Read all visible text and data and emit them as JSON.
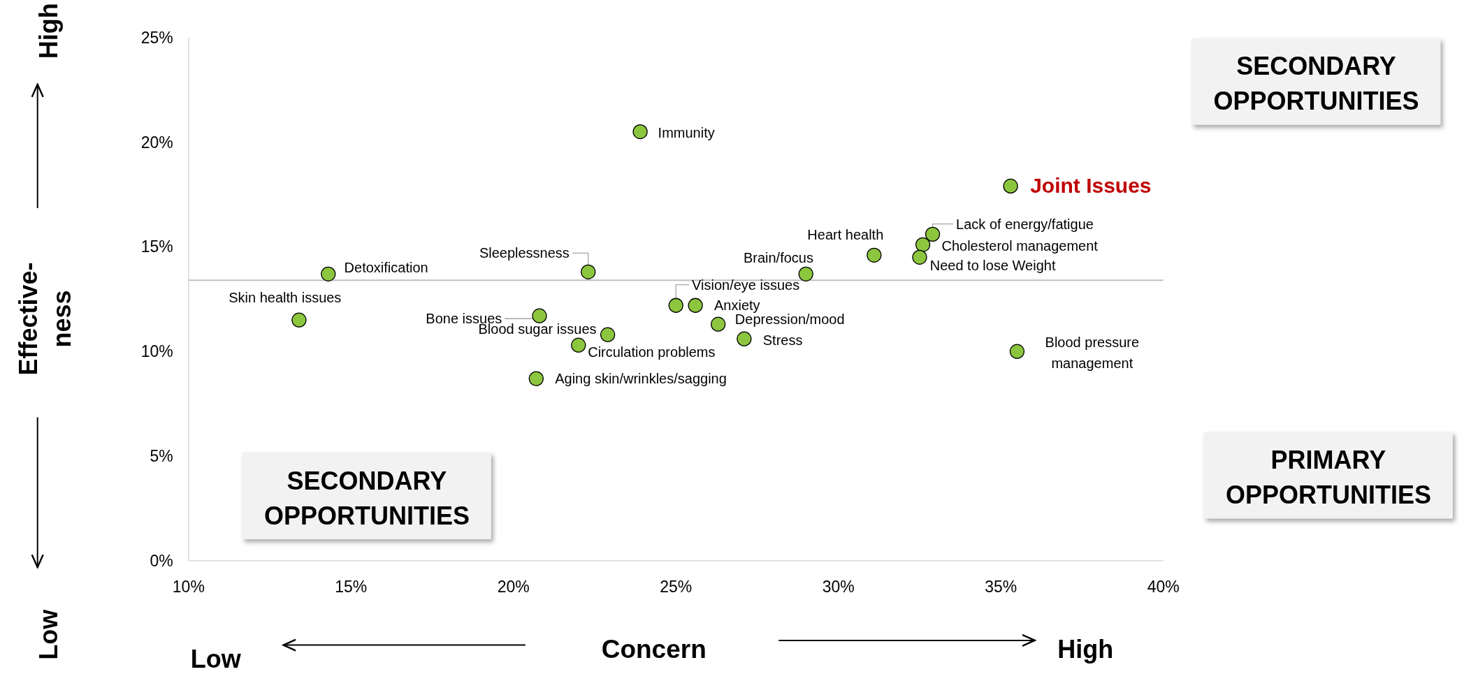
{
  "chart_data": {
    "type": "scatter",
    "xlabel": "Concern",
    "ylabel": "Effective-ness",
    "xlim": [
      10,
      40
    ],
    "xticks": [
      {
        "value": 10,
        "label": "10%"
      },
      {
        "value": 15,
        "label": "15%"
      },
      {
        "value": 20,
        "label": "20%"
      },
      {
        "value": 25,
        "label": "25%"
      },
      {
        "value": 30,
        "label": "30%"
      },
      {
        "value": 35,
        "label": "35%"
      },
      {
        "value": 40,
        "label": "40%"
      }
    ],
    "ylim": [
      0,
      25
    ],
    "yticks": [
      {
        "value": 0,
        "label": "0%"
      },
      {
        "value": 5,
        "label": "5%"
      },
      {
        "value": 10,
        "label": "10%"
      },
      {
        "value": 15,
        "label": "15%"
      },
      {
        "value": 20,
        "label": "20%"
      },
      {
        "value": 25,
        "label": "25%"
      }
    ],
    "marker": "circle",
    "grid": false,
    "series": [
      {
        "color": "#8cc63f",
        "x": [
          23.9,
          32.9,
          32.6,
          32.5,
          31.1,
          29.0,
          14.3,
          22.3,
          25.0,
          25.6,
          13.4,
          20.8,
          22.9,
          26.3,
          27.1,
          22.0,
          20.7,
          35.5
        ],
        "values": [
          20.5,
          15.6,
          15.1,
          14.5,
          14.6,
          13.7,
          13.7,
          13.8,
          12.2,
          12.2,
          11.5,
          11.7,
          10.8,
          11.3,
          10.6,
          10.3,
          8.7,
          10.0
        ]
      },
      {
        "name": "Joint Issues",
        "color": "#8cc63f",
        "x": [
          35.3
        ],
        "values": [
          17.9
        ]
      }
    ],
    "ref_lines": [
      {
        "axis": "y",
        "value": 13.4,
        "color": "#bfbfbf"
      }
    ],
    "annotations": [
      {
        "text": "Immunity",
        "x": 23.9,
        "y": 20.5
      },
      {
        "text": "Lack of energy/fatigue",
        "x": 32.9,
        "y": 15.6
      },
      {
        "text": "Cholesterol management",
        "x": 32.6,
        "y": 15.1
      },
      {
        "text": "Need to lose Weight",
        "x": 32.5,
        "y": 14.5
      },
      {
        "text": "Heart health",
        "x": 31.1,
        "y": 14.6
      },
      {
        "text": "Brain/focus",
        "x": 29.0,
        "y": 13.7
      },
      {
        "text": "Detoxification",
        "x": 14.3,
        "y": 13.7
      },
      {
        "text": "Sleeplessness",
        "x": 22.3,
        "y": 13.8
      },
      {
        "text": "Vision/eye issues",
        "x": 25.0,
        "y": 12.2
      },
      {
        "text": "Anxiety",
        "x": 25.6,
        "y": 12.2
      },
      {
        "text": "Skin health issues",
        "x": 13.4,
        "y": 11.5
      },
      {
        "text": "Bone issues",
        "x": 20.8,
        "y": 11.7
      },
      {
        "text": "Blood sugar issues",
        "x": 22.9,
        "y": 10.8
      },
      {
        "text": "Depression/mood",
        "x": 26.3,
        "y": 11.3
      },
      {
        "text": "Stress",
        "x": 27.1,
        "y": 10.6
      },
      {
        "text": "Circulation problems",
        "x": 22.0,
        "y": 10.3
      },
      {
        "text": "Aging skin/wrinkles/sagging",
        "x": 20.7,
        "y": 8.7
      },
      {
        "text": "Blood pressure management",
        "x": 35.5,
        "y": 10.0
      },
      "SECONDARY OPPORTUNITIES",
      "PRIMARY OPPORTUNITIES",
      "SECONDARY OPPORTUNITIES",
      "High",
      "Low",
      "Low",
      "High"
    ]
  }
}
